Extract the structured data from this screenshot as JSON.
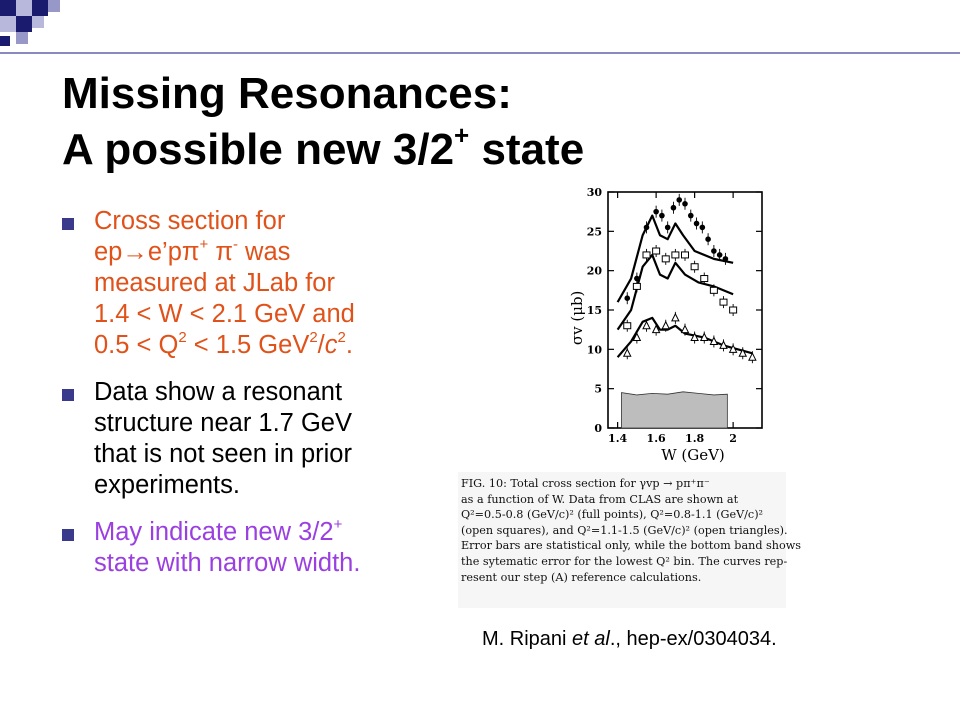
{
  "title": {
    "line1": "Missing Resonances:",
    "line2_prefix": "A possible new 3/2",
    "line2_sup": "+",
    "line2_suffix": " state"
  },
  "bullets": [
    {
      "color": "#e0521a",
      "parts": [
        "Cross section for",
        "ep→e’pπ",
        "+",
        " π",
        "-",
        " was",
        "measured at JLab for",
        "1.4 < W < 2.1 GeV and",
        "0.5 < Q",
        "2",
        " < 1.5 GeV",
        "2",
        "/",
        "c",
        "2",
        "."
      ]
    },
    {
      "color": "#000000",
      "text": [
        "Data show a resonant",
        "structure near 1.7 GeV",
        "that is not seen in prior",
        "experiments."
      ]
    },
    {
      "color": "#9a3fe0",
      "line1_prefix": "May indicate new 3/2",
      "line1_sup": "+",
      "line2": "state with narrow width."
    }
  ],
  "chart_data": {
    "type": "scatter",
    "xlabel": "W (GeV)",
    "ylabel": "σv (μb)",
    "xlim": [
      1.35,
      2.15
    ],
    "ylim": [
      0,
      30
    ],
    "xticks": [
      1.4,
      1.6,
      1.8,
      2
    ],
    "xtick_labels": [
      "1.4",
      "1.6",
      "1.8",
      "2"
    ],
    "yticks": [
      0,
      5,
      10,
      15,
      20,
      25,
      30
    ],
    "grid": false,
    "series": [
      {
        "marker": "full-points",
        "x": [
          1.45,
          1.5,
          1.55,
          1.6,
          1.63,
          1.66,
          1.69,
          1.72,
          1.75,
          1.78,
          1.81,
          1.84,
          1.87,
          1.9,
          1.93,
          1.96
        ],
        "y": [
          16.5,
          19,
          25.5,
          27.5,
          27,
          25.5,
          28,
          29,
          28.5,
          27,
          26,
          25.5,
          24,
          22.5,
          22,
          21.5
        ]
      },
      {
        "marker": "open-squares",
        "x": [
          1.45,
          1.5,
          1.55,
          1.6,
          1.65,
          1.7,
          1.75,
          1.8,
          1.85,
          1.9,
          1.95,
          2.0
        ],
        "y": [
          13,
          18,
          22,
          22.5,
          21.5,
          22,
          22,
          20.5,
          19,
          17.5,
          16,
          15
        ]
      },
      {
        "marker": "open-triangles",
        "x": [
          1.45,
          1.5,
          1.55,
          1.6,
          1.65,
          1.7,
          1.75,
          1.8,
          1.85,
          1.9,
          1.95,
          2.0,
          2.05,
          2.1
        ],
        "y": [
          9.5,
          11.5,
          13,
          12.5,
          13,
          14,
          12.5,
          11.5,
          11.5,
          11,
          10.5,
          10,
          9.5,
          9
        ]
      }
    ],
    "curves": [
      {
        "x": [
          1.4,
          1.47,
          1.53,
          1.58,
          1.62,
          1.66,
          1.7,
          1.74,
          1.8,
          1.9,
          2.0
        ],
        "y": [
          16,
          19,
          24.5,
          27,
          24.5,
          24,
          26,
          24.5,
          22.5,
          21.5,
          21
        ]
      },
      {
        "x": [
          1.4,
          1.47,
          1.53,
          1.58,
          1.62,
          1.66,
          1.7,
          1.75,
          1.82,
          1.9,
          2.0
        ],
        "y": [
          12.5,
          15,
          20.5,
          22,
          19.5,
          19,
          21,
          19.5,
          18.5,
          18,
          17
        ]
      },
      {
        "x": [
          1.4,
          1.47,
          1.53,
          1.58,
          1.62,
          1.66,
          1.7,
          1.75,
          1.85,
          1.95,
          2.1
        ],
        "y": [
          9,
          11,
          13.5,
          14,
          12.5,
          12.5,
          13,
          12,
          11.5,
          10.5,
          9.5
        ]
      }
    ],
    "systematic_band": {
      "x": [
        1.42,
        1.5,
        1.58,
        1.66,
        1.74,
        1.82,
        1.9,
        1.97
      ],
      "y": [
        4.5,
        4.2,
        4.4,
        4.3,
        4.6,
        4.4,
        4.2,
        4.3
      ]
    }
  },
  "caption": {
    "lines": [
      "FIG. 10:        Total cross section for γvp → pπ⁺π⁻",
      "as a function of W.  Data from CLAS are shown at",
      "Q²=0.5-0.8 (GeV/c)² (full points), Q²=0.8-1.1 (GeV/c)²",
      "(open squares), and Q²=1.1-1.5 (GeV/c)² (open triangles).",
      "Error bars are statistical only, while the bottom band shows",
      "the sytematic error for the lowest Q² bin.  The curves rep-",
      "resent our step (A) reference calculations."
    ]
  },
  "citation": {
    "prefix": "M. Ripani ",
    "italic": "et al",
    "suffix": "., hep-ex/0304034."
  },
  "colors": {
    "deco_navy": "#1a1a6e",
    "deco_light": "#9898c8",
    "marker_blue": "#3a3a8c",
    "band_gray": "#bdbdbd"
  }
}
